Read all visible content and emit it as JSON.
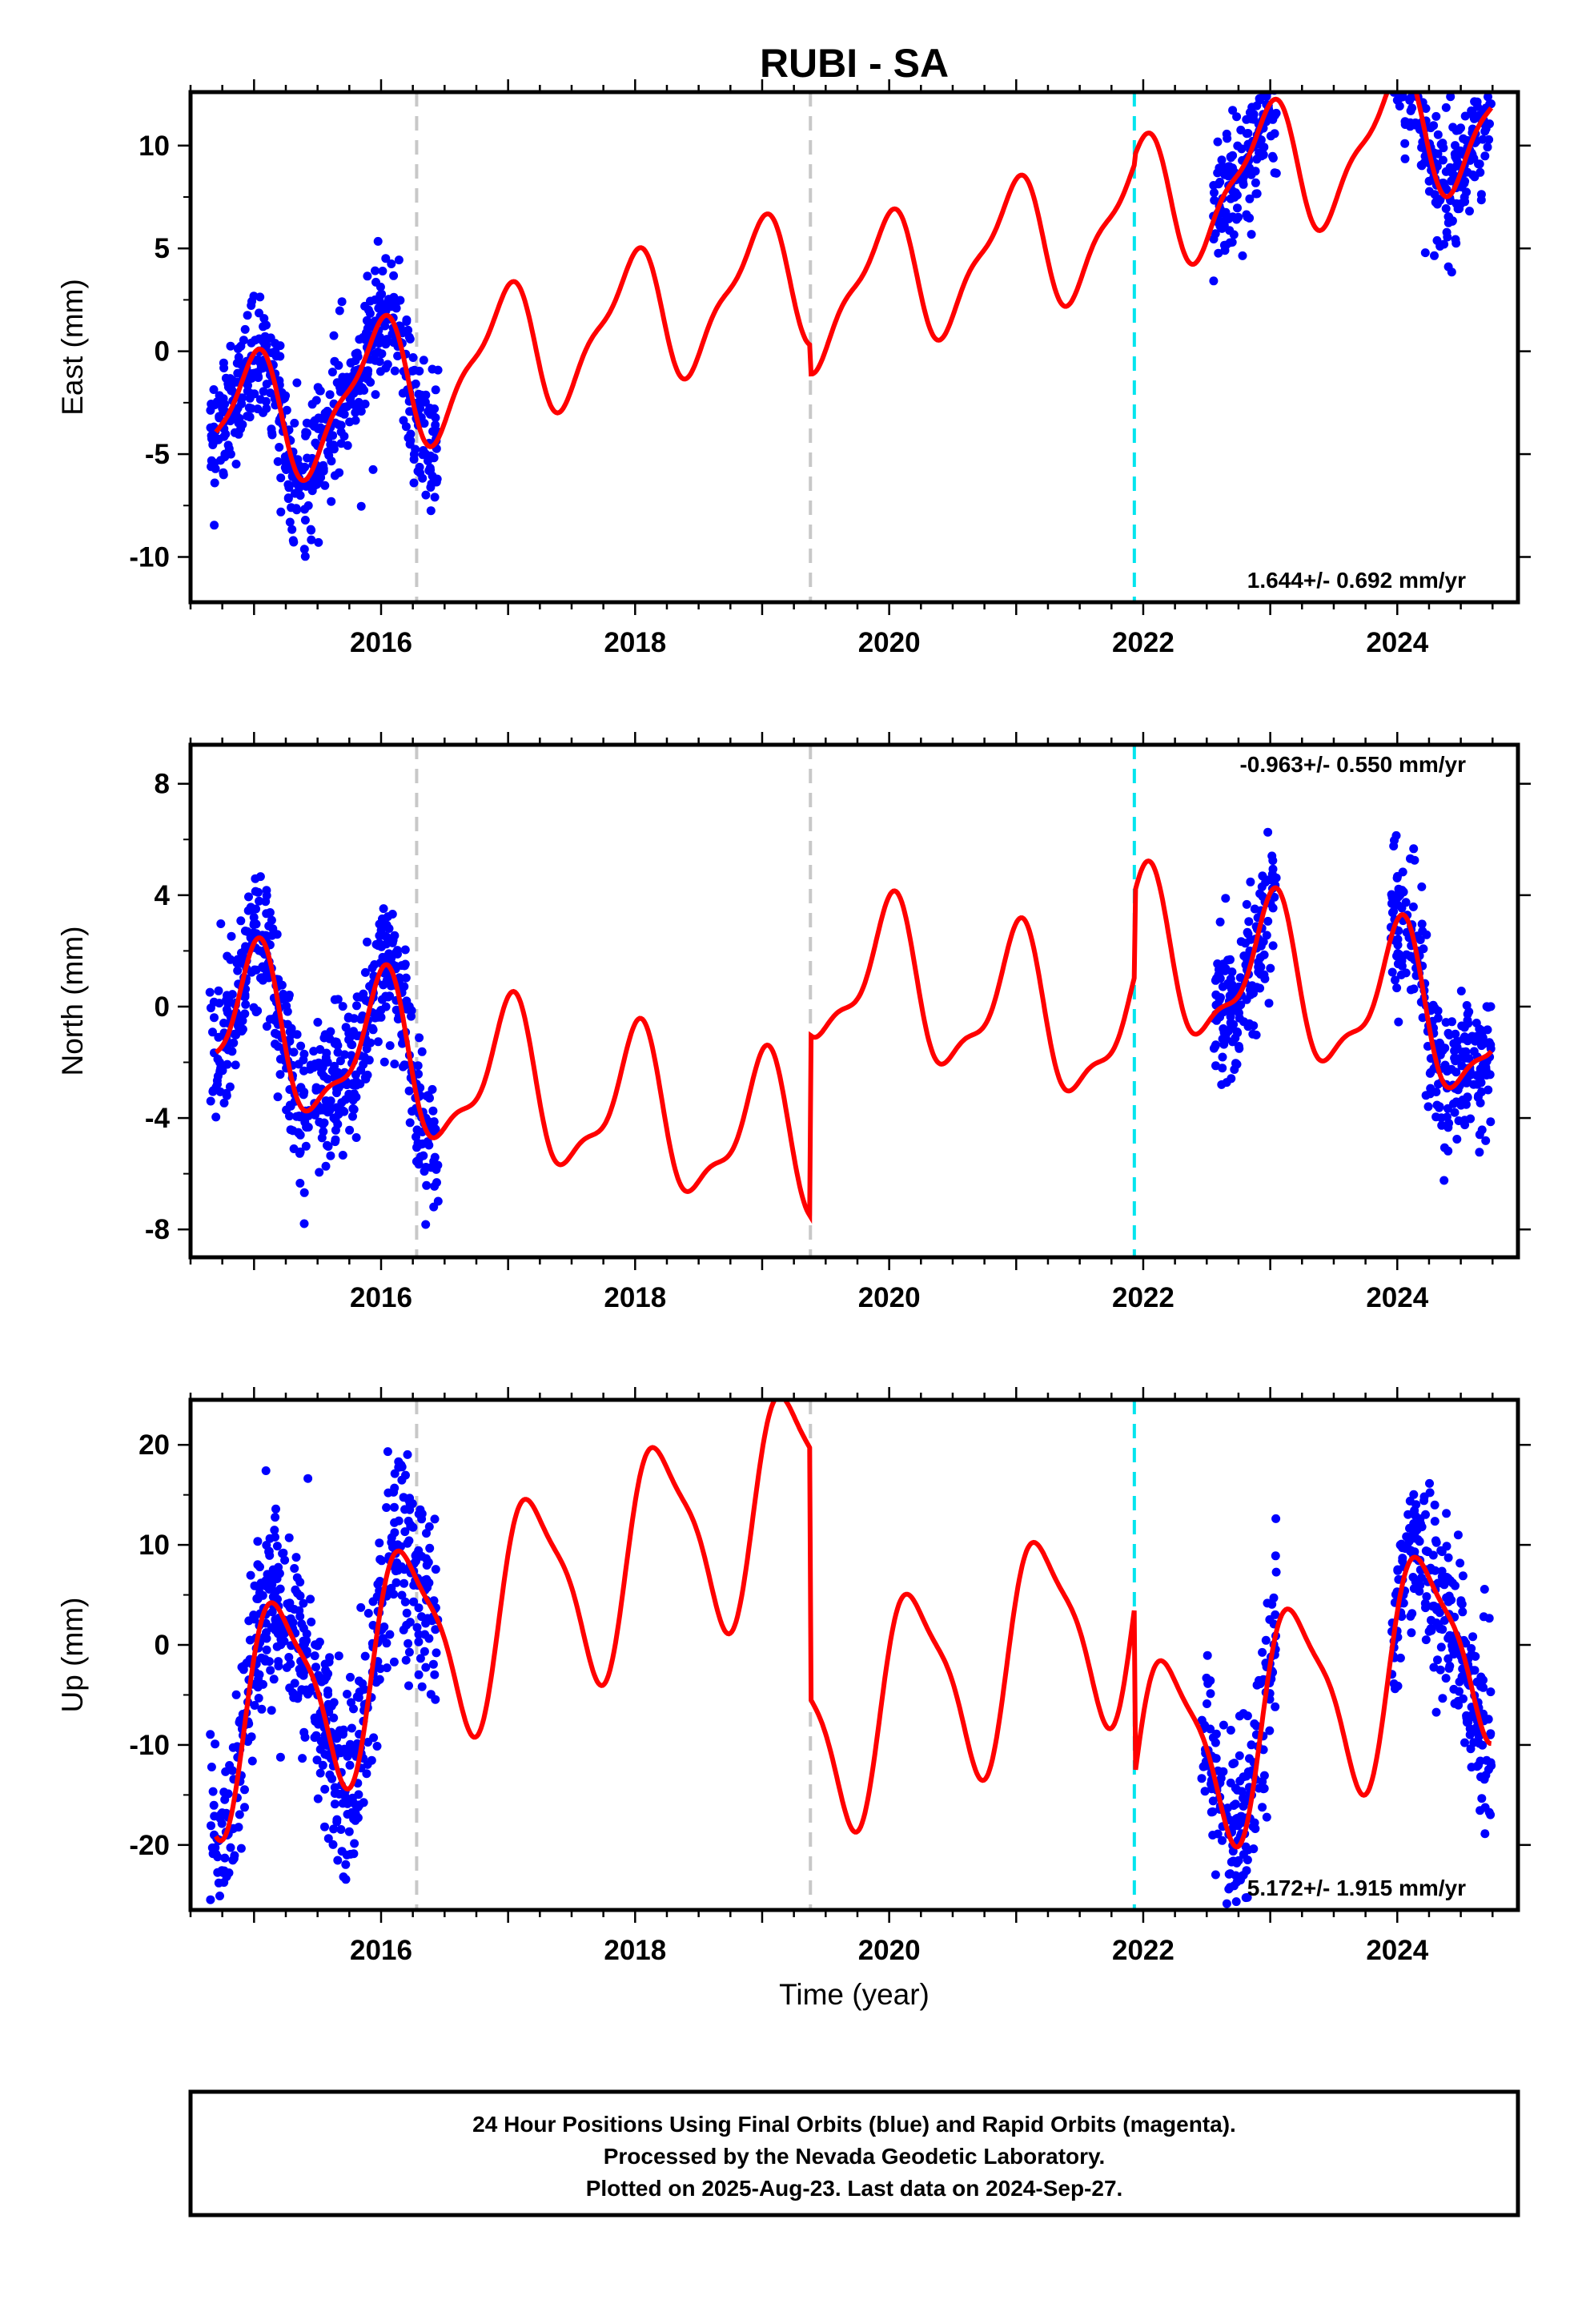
{
  "title": "RUBI - SA",
  "xlabel": "Time (year)",
  "caption": {
    "line1": "24 Hour Positions Using Final Orbits (blue) and Rapid Orbits (magenta).",
    "line2": "Processed by the Nevada Geodetic Laboratory.",
    "line3": "Plotted on 2025-Aug-23. Last data on 2024-Sep-27."
  },
  "colors": {
    "data": "#0000ff",
    "model": "#ff0000",
    "offset_line": "#c8c8c8",
    "offset_line_cyan": "#00e5ee"
  },
  "chart_data": [
    {
      "type": "scatter",
      "ylabel": "East (mm)",
      "rate_label": "1.644+/- 0.692 mm/yr",
      "xlim": [
        2014.5,
        2024.95
      ],
      "ylim": [
        -12.2,
        12.6
      ],
      "xticks": [
        2016,
        2018,
        2020,
        2022,
        2024
      ],
      "xtick_labels": [
        "2016",
        "2018",
        "2020",
        "2022",
        "2024"
      ],
      "yticks": [
        -10,
        -5,
        0,
        5,
        10
      ],
      "ytick_labels": [
        "-10",
        "-5",
        "0",
        "5",
        "10"
      ],
      "offset_lines": [
        {
          "x": 2016.28,
          "style": "gray"
        },
        {
          "x": 2019.38,
          "style": "gray"
        },
        {
          "x": 2021.93,
          "style": "cyan"
        }
      ],
      "model_linear": {
        "a": -3.9,
        "rate": 1.644,
        "t0": 2014.7
      },
      "model_segments": [
        {
          "from": 2014.7,
          "to": 2019.38,
          "offset": 0
        },
        {
          "from": 2019.38,
          "to": 2021.93,
          "offset": -1.4
        },
        {
          "from": 2021.93,
          "to": 2024.74,
          "offset": -1.0
        }
      ],
      "model_seasonal": {
        "annual_amp": 3.0,
        "annual_phase": 1.8,
        "semi_amp": 1.0,
        "semi_phase": 0.4
      },
      "data_ranges": [
        {
          "from": 2014.65,
          "to": 2016.45,
          "scatter": 1.6
        },
        {
          "from": 2022.55,
          "to": 2023.05,
          "scatter": 1.7
        },
        {
          "from": 2023.95,
          "to": 2024.74,
          "scatter": 1.5
        }
      ],
      "rate_label_position": "bottom-right"
    },
    {
      "type": "scatter",
      "ylabel": "North (mm)",
      "rate_label": "-0.963+/- 0.550 mm/yr",
      "xlim": [
        2014.5,
        2024.95
      ],
      "ylim": [
        -9.0,
        9.4
      ],
      "xticks": [
        2016,
        2018,
        2020,
        2022,
        2024
      ],
      "xtick_labels": [
        "2016",
        "2018",
        "2020",
        "2022",
        "2024"
      ],
      "yticks": [
        -8,
        -4,
        0,
        4,
        8
      ],
      "ytick_labels": [
        "-8",
        "-4",
        "0",
        "4",
        "8"
      ],
      "offset_lines": [
        {
          "x": 2016.28,
          "style": "gray"
        },
        {
          "x": 2019.38,
          "style": "gray"
        },
        {
          "x": 2021.93,
          "style": "cyan"
        }
      ],
      "model_linear": {
        "a": -0.6,
        "rate": -0.963,
        "t0": 2014.7
      },
      "model_segments": [
        {
          "from": 2014.7,
          "to": 2019.38,
          "offset": 0
        },
        {
          "from": 2019.38,
          "to": 2021.93,
          "offset": 6.5
        },
        {
          "from": 2021.93,
          "to": 2024.74,
          "offset": 9.5
        }
      ],
      "model_seasonal": {
        "annual_amp": 2.6,
        "annual_phase": 1.5,
        "semi_amp": 0.9,
        "semi_phase": 0.7
      },
      "data_ranges": [
        {
          "from": 2014.65,
          "to": 2016.45,
          "scatter": 1.3
        },
        {
          "from": 2022.55,
          "to": 2023.05,
          "scatter": 1.2
        },
        {
          "from": 2023.95,
          "to": 2024.74,
          "scatter": 1.3
        }
      ],
      "rate_label_position": "top-right"
    },
    {
      "type": "scatter",
      "ylabel": "Up (mm)",
      "rate_label": "5.172+/- 1.915 mm/yr",
      "xlim": [
        2014.5,
        2024.95
      ],
      "ylim": [
        -26.5,
        24.5
      ],
      "xticks": [
        2016,
        2018,
        2020,
        2022,
        2024
      ],
      "xtick_labels": [
        "2016",
        "2018",
        "2020",
        "2022",
        "2024"
      ],
      "yticks": [
        -20,
        -10,
        0,
        10,
        20
      ],
      "ytick_labels": [
        "-20",
        "-10",
        "0",
        "10",
        "20"
      ],
      "offset_lines": [
        {
          "x": 2016.28,
          "style": "gray"
        },
        {
          "x": 2019.38,
          "style": "gray"
        },
        {
          "x": 2021.93,
          "style": "cyan"
        }
      ],
      "model_linear": {
        "a": -8.0,
        "rate": 5.172,
        "t0": 2014.7
      },
      "model_segments": [
        {
          "from": 2014.7,
          "to": 2019.38,
          "offset": 0
        },
        {
          "from": 2019.38,
          "to": 2021.93,
          "offset": -25.0
        },
        {
          "from": 2021.93,
          "to": 2024.74,
          "offset": -42.0
        }
      ],
      "model_seasonal": {
        "annual_amp": 10.0,
        "annual_phase": 0.3,
        "semi_amp": 2.5,
        "semi_phase": 1.1
      },
      "data_ranges": [
        {
          "from": 2014.65,
          "to": 2016.45,
          "scatter": 5.0
        },
        {
          "from": 2022.45,
          "to": 2023.05,
          "scatter": 4.5
        },
        {
          "from": 2023.95,
          "to": 2024.74,
          "scatter": 4.5
        }
      ],
      "rate_label_position": "bottom-right"
    }
  ]
}
